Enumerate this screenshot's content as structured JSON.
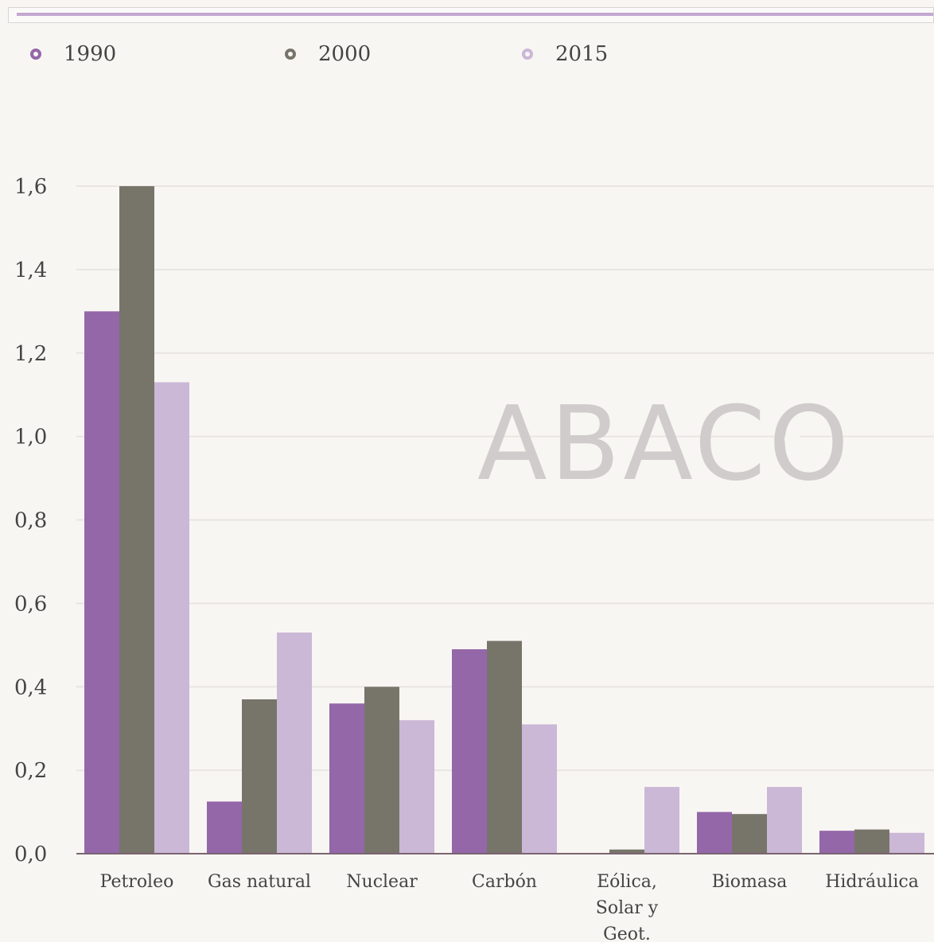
{
  "legend": [
    {
      "label": "1990",
      "color": "#9467a9"
    },
    {
      "label": "2000",
      "color": "#77756a"
    },
    {
      "label": "2015",
      "color": "#cbb7d6"
    }
  ],
  "watermark": "ABACO",
  "chart_data": {
    "type": "bar",
    "categories": [
      "Petroleo",
      "Gas natural",
      "Nuclear",
      "Carbón",
      "Eólica, Solar y Geot.",
      "Biomasa",
      "Hidráulica"
    ],
    "category_lines": [
      [
        "Petroleo"
      ],
      [
        "Gas natural"
      ],
      [
        "Nuclear"
      ],
      [
        "Carbón"
      ],
      [
        "Eólica,",
        "Solar y",
        "Geot."
      ],
      [
        "Biomasa"
      ],
      [
        "Hidráulica"
      ]
    ],
    "series": [
      {
        "name": "1990",
        "color": "#9467a9",
        "values": [
          1.3,
          0.125,
          0.36,
          0.49,
          0.0,
          0.1,
          0.055
        ]
      },
      {
        "name": "2000",
        "color": "#77756a",
        "values": [
          1.6,
          0.37,
          0.4,
          0.51,
          0.01,
          0.095,
          0.058
        ]
      },
      {
        "name": "2015",
        "color": "#cbb7d6",
        "values": [
          1.13,
          0.53,
          0.32,
          0.31,
          0.16,
          0.16,
          0.05
        ]
      }
    ],
    "y_ticks": [
      "0,0",
      "0,2",
      "0,4",
      "0,6",
      "0,8",
      "1,0",
      "1,2",
      "1,4",
      "1,6"
    ],
    "ylim": [
      0,
      1.6
    ],
    "grid": true
  }
}
